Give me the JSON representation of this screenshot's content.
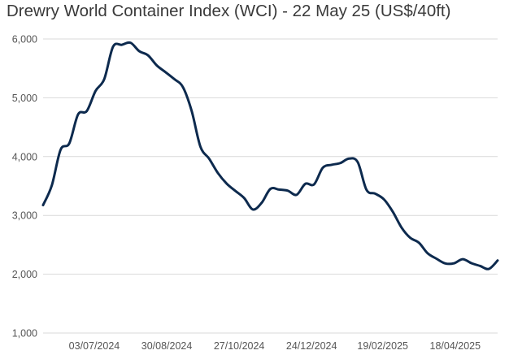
{
  "chart_data": {
    "type": "line",
    "title": "Drewry World Container Index (WCI) - 22 May 25 (US$/40ft)",
    "xlabel": "",
    "ylabel": "",
    "ylim": [
      1000,
      6000
    ],
    "yticks": [
      1000,
      2000,
      3000,
      4000,
      5000,
      6000
    ],
    "ytick_labels": [
      "1,000",
      "2,000",
      "3,000",
      "4,000",
      "5,000",
      "6,000"
    ],
    "xticks": [
      "2024-07-03",
      "2024-08-30",
      "2024-10-27",
      "2024-12-24",
      "2025-02-19",
      "2025-04-18"
    ],
    "xtick_labels": [
      "03/07/2024",
      "30/08/2024",
      "27/10/2024",
      "24/12/2024",
      "19/02/2025",
      "18/04/2025"
    ],
    "xlim": [
      "2024-05-23",
      "2025-05-22"
    ],
    "grid": "horizontal",
    "line_color": "#0d2a4e",
    "series": [
      {
        "x": [
          "2024-05-23",
          "2024-05-30",
          "2024-06-06",
          "2024-06-13",
          "2024-06-20",
          "2024-06-27",
          "2024-07-04",
          "2024-07-11",
          "2024-07-18",
          "2024-07-25",
          "2024-08-01",
          "2024-08-08",
          "2024-08-15",
          "2024-08-22",
          "2024-08-29",
          "2024-09-05",
          "2024-09-12",
          "2024-09-19",
          "2024-09-26",
          "2024-10-03",
          "2024-10-10",
          "2024-10-17",
          "2024-10-24",
          "2024-10-31",
          "2024-11-07",
          "2024-11-14",
          "2024-11-21",
          "2024-11-28",
          "2024-12-05",
          "2024-12-12",
          "2024-12-19",
          "2024-12-26",
          "2025-01-02",
          "2025-01-09",
          "2025-01-16",
          "2025-01-23",
          "2025-01-30",
          "2025-02-06",
          "2025-02-13",
          "2025-02-20",
          "2025-02-27",
          "2025-03-06",
          "2025-03-13",
          "2025-03-20",
          "2025-03-27",
          "2025-04-03",
          "2025-04-10",
          "2025-04-17",
          "2025-04-24",
          "2025-05-01",
          "2025-05-08",
          "2025-05-15",
          "2025-05-22"
        ],
        "values": [
          3175,
          3511,
          4116,
          4226,
          4716,
          4775,
          5116,
          5319,
          5868,
          5901,
          5936,
          5793,
          5723,
          5551,
          5437,
          5319,
          5181,
          4775,
          4168,
          3964,
          3720,
          3541,
          3416,
          3295,
          3101,
          3213,
          3450,
          3439,
          3420,
          3350,
          3537,
          3528,
          3810,
          3860,
          3890,
          3966,
          3905,
          3435,
          3369,
          3272,
          3064,
          2795,
          2619,
          2535,
          2355,
          2264,
          2184,
          2185,
          2256,
          2188,
          2140,
          2090,
          2233
        ]
      }
    ]
  }
}
